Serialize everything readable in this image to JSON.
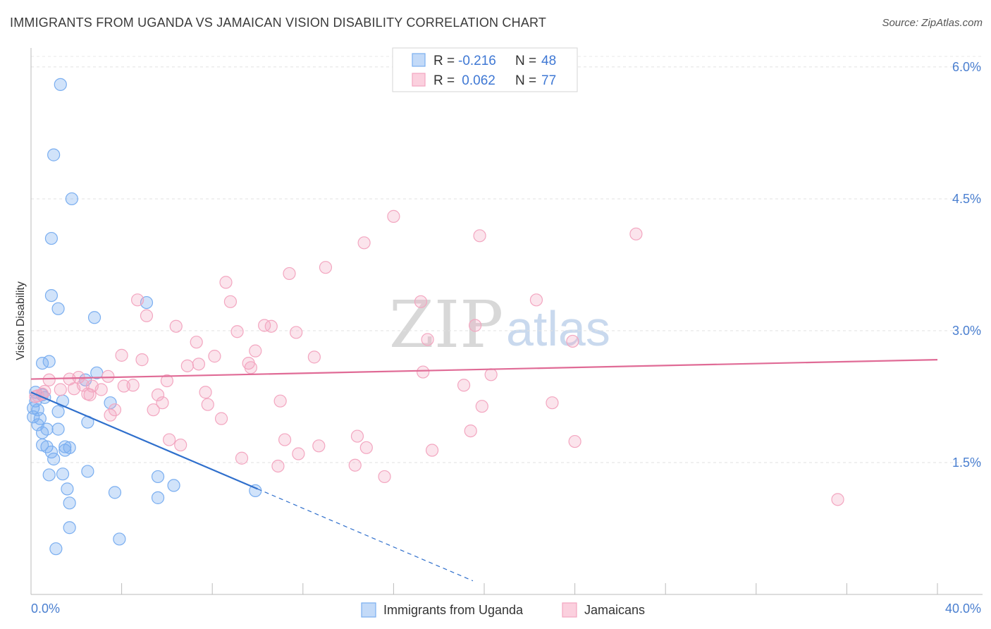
{
  "title": "IMMIGRANTS FROM UGANDA VS JAMAICAN VISION DISABILITY CORRELATION CHART",
  "source": "Source: ZipAtlas.com",
  "watermark": {
    "zip": "ZIP",
    "atlas": "atlas"
  },
  "legend_top": [
    {
      "r_label": "R =",
      "r_value": "-0.216",
      "n_label": "N =",
      "n_value": "48",
      "color": "#7aaef0"
    },
    {
      "r_label": "R =",
      "r_value": " 0.062",
      "n_label": "N =",
      "n_value": "77",
      "color": "#f3a6c0"
    }
  ],
  "chart_data": {
    "type": "scatter",
    "title": "IMMIGRANTS FROM UGANDA VS JAMAICAN VISION DISABILITY CORRELATION CHART",
    "xlabel": "",
    "ylabel": "Vision Disability",
    "xlim": [
      0,
      40
    ],
    "ylim": [
      0,
      6.2
    ],
    "x_tick_labels": [
      "0.0%",
      "40.0%"
    ],
    "y_ticks": [
      1.5,
      3.0,
      4.5,
      6.0
    ],
    "y_tick_labels": [
      "1.5%",
      "3.0%",
      "4.5%",
      "6.0%"
    ],
    "grid": true,
    "legend_position": "bottom",
    "series": [
      {
        "name": "Immigrants from Uganda",
        "color": "#7aaef0",
        "line_color": "#2f6fcc",
        "trend": {
          "x0": 0.0,
          "y0": 2.3,
          "x1": 10.0,
          "y1": 1.2,
          "dash_to_x": 19.5
        },
        "points": [
          [
            1.3,
            5.8
          ],
          [
            1.0,
            5.0
          ],
          [
            1.8,
            4.5
          ],
          [
            0.9,
            4.05
          ],
          [
            0.9,
            3.4
          ],
          [
            1.2,
            3.25
          ],
          [
            2.8,
            3.15
          ],
          [
            5.1,
            3.32
          ],
          [
            0.8,
            2.65
          ],
          [
            0.5,
            2.63
          ],
          [
            2.9,
            2.52
          ],
          [
            2.4,
            2.44
          ],
          [
            0.2,
            2.3
          ],
          [
            0.5,
            2.27
          ],
          [
            0.1,
            2.12
          ],
          [
            0.3,
            2.1
          ],
          [
            1.4,
            2.2
          ],
          [
            3.5,
            2.18
          ],
          [
            1.2,
            2.08
          ],
          [
            0.1,
            2.02
          ],
          [
            0.4,
            2.0
          ],
          [
            2.5,
            1.96
          ],
          [
            0.3,
            1.93
          ],
          [
            0.7,
            1.88
          ],
          [
            1.2,
            1.88
          ],
          [
            0.5,
            1.84
          ],
          [
            0.5,
            1.7
          ],
          [
            0.7,
            1.68
          ],
          [
            1.5,
            1.68
          ],
          [
            1.7,
            1.67
          ],
          [
            0.9,
            1.62
          ],
          [
            1.5,
            1.64
          ],
          [
            1.0,
            1.54
          ],
          [
            2.5,
            1.4
          ],
          [
            0.8,
            1.36
          ],
          [
            1.4,
            1.37
          ],
          [
            5.6,
            1.34
          ],
          [
            1.6,
            1.2
          ],
          [
            3.7,
            1.16
          ],
          [
            6.3,
            1.24
          ],
          [
            5.6,
            1.1
          ],
          [
            1.7,
            1.04
          ],
          [
            9.9,
            1.18
          ],
          [
            1.7,
            0.76
          ],
          [
            1.1,
            0.52
          ],
          [
            3.9,
            0.63
          ],
          [
            0.2,
            2.2
          ],
          [
            0.6,
            2.24
          ]
        ]
      },
      {
        "name": "Jamaicans",
        "color": "#f3a6c0",
        "line_color": "#e06b96",
        "trend": {
          "x0": 0.0,
          "y0": 2.45,
          "x1": 40.0,
          "y1": 2.67
        },
        "points": [
          [
            16.0,
            4.3
          ],
          [
            14.7,
            4.0
          ],
          [
            19.8,
            4.08
          ],
          [
            26.7,
            4.1
          ],
          [
            13.0,
            3.72
          ],
          [
            11.4,
            3.65
          ],
          [
            8.6,
            3.55
          ],
          [
            8.8,
            3.33
          ],
          [
            17.2,
            3.33
          ],
          [
            22.3,
            3.35
          ],
          [
            4.7,
            3.35
          ],
          [
            5.1,
            3.17
          ],
          [
            10.3,
            3.06
          ],
          [
            10.6,
            3.05
          ],
          [
            6.4,
            3.05
          ],
          [
            19.6,
            3.06
          ],
          [
            9.1,
            2.99
          ],
          [
            11.7,
            2.98
          ],
          [
            7.3,
            2.87
          ],
          [
            17.5,
            2.9
          ],
          [
            23.9,
            2.88
          ],
          [
            9.9,
            2.77
          ],
          [
            4.0,
            2.72
          ],
          [
            8.1,
            2.71
          ],
          [
            12.5,
            2.7
          ],
          [
            4.9,
            2.67
          ],
          [
            6.9,
            2.6
          ],
          [
            7.4,
            2.62
          ],
          [
            9.6,
            2.63
          ],
          [
            9.7,
            2.58
          ],
          [
            17.3,
            2.53
          ],
          [
            20.3,
            2.5
          ],
          [
            3.4,
            2.48
          ],
          [
            2.1,
            2.47
          ],
          [
            1.7,
            2.45
          ],
          [
            0.8,
            2.44
          ],
          [
            6.0,
            2.43
          ],
          [
            2.3,
            2.38
          ],
          [
            4.1,
            2.37
          ],
          [
            4.5,
            2.38
          ],
          [
            2.7,
            2.37
          ],
          [
            19.1,
            2.38
          ],
          [
            1.9,
            2.34
          ],
          [
            3.1,
            2.33
          ],
          [
            1.3,
            2.33
          ],
          [
            0.6,
            2.31
          ],
          [
            7.7,
            2.3
          ],
          [
            2.5,
            2.28
          ],
          [
            5.6,
            2.27
          ],
          [
            2.6,
            2.27
          ],
          [
            0.3,
            2.26
          ],
          [
            0.5,
            2.28
          ],
          [
            11.0,
            2.2
          ],
          [
            5.8,
            2.18
          ],
          [
            7.8,
            2.16
          ],
          [
            23.0,
            2.18
          ],
          [
            19.9,
            2.14
          ],
          [
            3.7,
            2.1
          ],
          [
            5.4,
            2.1
          ],
          [
            3.5,
            2.04
          ],
          [
            8.4,
            2.0
          ],
          [
            19.4,
            1.86
          ],
          [
            14.4,
            1.8
          ],
          [
            11.2,
            1.76
          ],
          [
            6.1,
            1.76
          ],
          [
            24.0,
            1.74
          ],
          [
            6.6,
            1.7
          ],
          [
            12.7,
            1.69
          ],
          [
            14.8,
            1.67
          ],
          [
            17.7,
            1.64
          ],
          [
            11.8,
            1.6
          ],
          [
            9.3,
            1.55
          ],
          [
            10.9,
            1.46
          ],
          [
            14.3,
            1.47
          ],
          [
            15.6,
            1.34
          ],
          [
            35.6,
            1.08
          ],
          [
            0.2,
            2.25
          ]
        ]
      }
    ]
  }
}
